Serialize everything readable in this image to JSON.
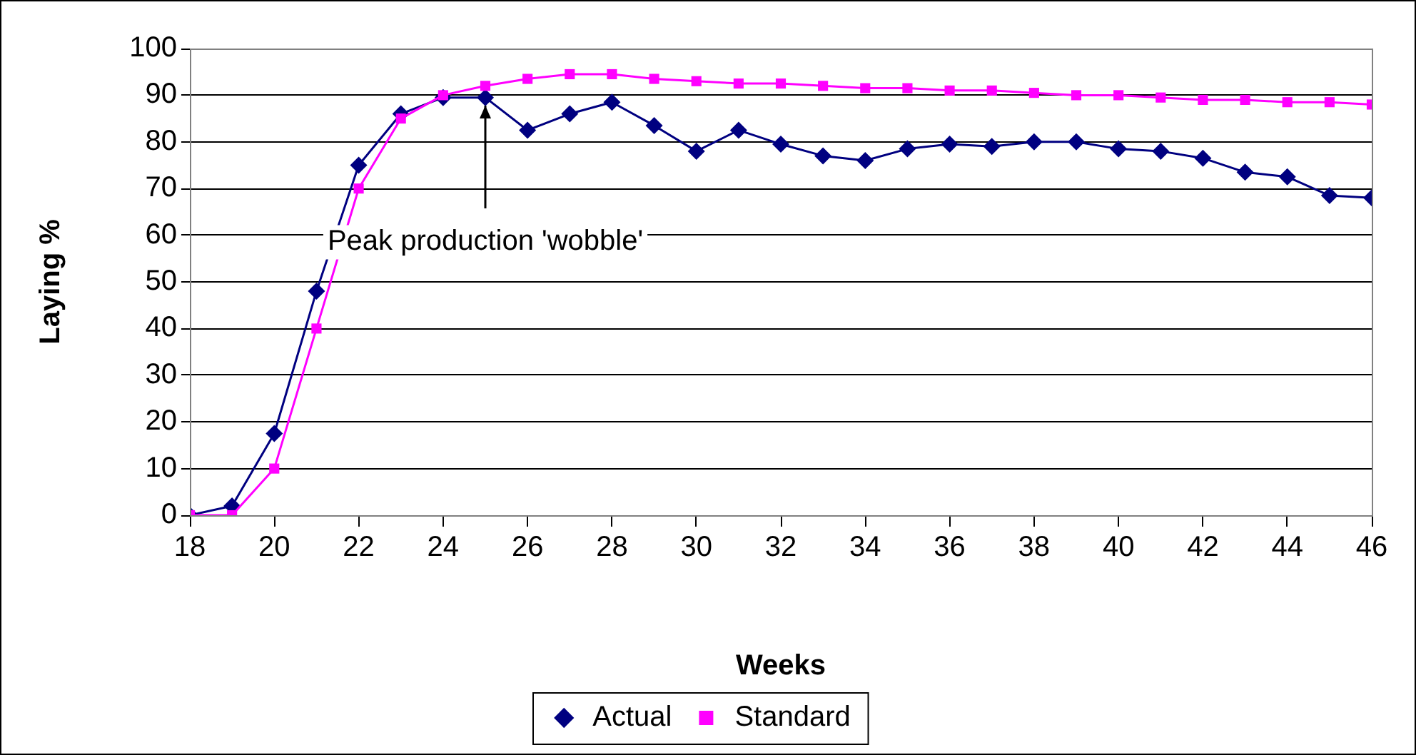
{
  "chart_data": {
    "type": "line",
    "xlabel": "Weeks",
    "ylabel": "Laying %",
    "x": [
      18,
      19,
      20,
      21,
      22,
      23,
      24,
      25,
      26,
      27,
      28,
      29,
      30,
      31,
      32,
      33,
      34,
      35,
      36,
      37,
      38,
      39,
      40,
      41,
      42,
      43,
      44,
      45,
      46
    ],
    "series": [
      {
        "name": "Actual",
        "color": "#000080",
        "marker": "diamond",
        "values": [
          0,
          2,
          17.5,
          48,
          75,
          86,
          89.5,
          89.5,
          82.5,
          86,
          88.5,
          83.5,
          78,
          82.5,
          79.5,
          77,
          76,
          78.5,
          79.5,
          79,
          80,
          80,
          78.5,
          78,
          76.5,
          73.5,
          72.5,
          68.5,
          68
        ]
      },
      {
        "name": "Standard",
        "color": "#ff00ff",
        "marker": "square",
        "values": [
          0,
          0,
          10,
          40,
          70,
          85,
          90,
          92,
          93.5,
          94.5,
          94.5,
          93.5,
          93,
          92.5,
          92.5,
          92,
          91.5,
          91.5,
          91,
          91,
          90.5,
          90,
          90,
          89.5,
          89,
          89,
          88.5,
          88.5,
          88
        ]
      }
    ],
    "xlim": [
      18,
      46
    ],
    "xticks": [
      18,
      20,
      22,
      24,
      26,
      28,
      30,
      32,
      34,
      36,
      38,
      40,
      42,
      44,
      46
    ],
    "ylim": [
      0,
      100
    ],
    "yticks": [
      0,
      10,
      20,
      30,
      40,
      50,
      60,
      70,
      80,
      90,
      100
    ],
    "grid": "y",
    "legend": "bottom",
    "annotations": [
      {
        "text": "Peak production 'wobble'",
        "x": 25,
        "y": 89.5
      }
    ]
  }
}
